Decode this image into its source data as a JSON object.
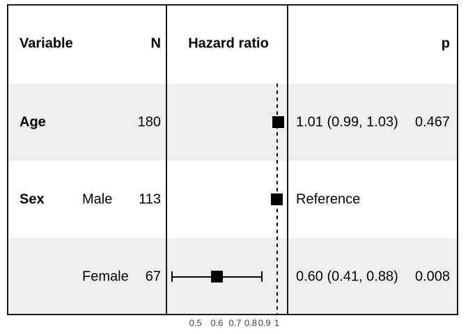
{
  "chart_data": {
    "type": "scatter",
    "subtype": "forest-plot",
    "title": "",
    "columns": [
      "Variable",
      "N",
      "Hazard ratio",
      "p"
    ],
    "rows": [
      {
        "variable": "Age",
        "level": "",
        "n": "180",
        "hr": 1.01,
        "ci_low": 0.99,
        "ci_high": 1.03,
        "estimate_label": "1.01 (0.99, 1.03)",
        "p": "0.467",
        "shaded": true
      },
      {
        "variable": "Sex",
        "level": "Male",
        "n": "113",
        "hr": 1.0,
        "ci_low": null,
        "ci_high": null,
        "estimate_label": "Reference",
        "p": "",
        "shaded": false
      },
      {
        "variable": "",
        "level": "Female",
        "n": "67",
        "hr": 0.6,
        "ci_low": 0.41,
        "ci_high": 0.88,
        "estimate_label": "0.60 (0.41, 0.88)",
        "p": "0.008",
        "shaded": true
      }
    ],
    "x_axis": {
      "scale": "log10",
      "ticks": [
        0.5,
        0.6,
        0.7,
        0.8,
        0.9,
        1
      ],
      "tick_labels": [
        "0.5",
        "0.6",
        "0.7",
        "0.8",
        "0.9",
        "1"
      ]
    },
    "reference_line": 1,
    "legend": "none",
    "grid": "off"
  },
  "colors": {
    "background": "#ffffff",
    "stripe": "#efefef",
    "line": "#1a1a1a",
    "marker": "#000000",
    "axis_text": "#404040"
  }
}
